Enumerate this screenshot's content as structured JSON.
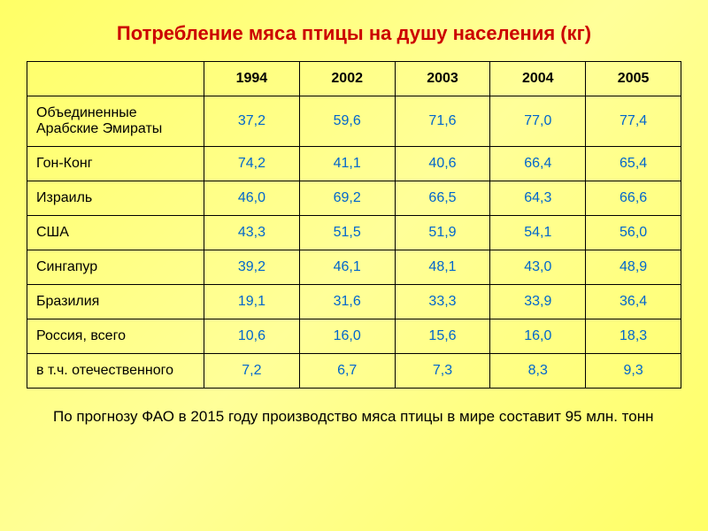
{
  "title": "Потребление мяса птицы на душу населения (кг)",
  "table": {
    "columns": [
      "",
      "1994",
      "2002",
      "2003",
      "2004",
      "2005"
    ],
    "rows": [
      {
        "label": "Объединенные Арабские Эмираты",
        "values": [
          "37,2",
          "59,6",
          "71,6",
          "77,0",
          "77,4"
        ]
      },
      {
        "label": "Гон-Конг",
        "values": [
          "74,2",
          "41,1",
          "40,6",
          "66,4",
          "65,4"
        ]
      },
      {
        "label": "Израиль",
        "values": [
          "46,0",
          "69,2",
          "66,5",
          "64,3",
          "66,6"
        ]
      },
      {
        "label": "США",
        "values": [
          "43,3",
          "51,5",
          "51,9",
          "54,1",
          "56,0"
        ]
      },
      {
        "label": "Сингапур",
        "values": [
          "39,2",
          "46,1",
          "48,1",
          "43,0",
          "48,9"
        ]
      },
      {
        "label": "Бразилия",
        "values": [
          "19,1",
          "31,6",
          "33,3",
          "33,9",
          "36,4"
        ]
      },
      {
        "label": "Россия, всего",
        "values": [
          "10,6",
          "16,0",
          "15,6",
          "16,0",
          "18,3"
        ]
      },
      {
        "label": "в т.ч. отечественного",
        "values": [
          "7,2",
          "6,7",
          "7,3",
          "8,3",
          "9,3"
        ]
      }
    ],
    "column_widths": [
      "200px",
      "auto",
      "auto",
      "auto",
      "auto",
      "auto"
    ],
    "value_color": "#0066cc",
    "label_color": "#000000",
    "header_color": "#000000",
    "border_color": "#000000",
    "title_color": "#cc0000",
    "title_fontsize": 22,
    "cell_fontsize": 16
  },
  "footnote": "По прогнозу ФАО в 2015 году производство мяса птицы в мире составит 95 млн. тонн",
  "background_gradient": [
    "#ffff66",
    "#ffff99",
    "#ffff66"
  ]
}
